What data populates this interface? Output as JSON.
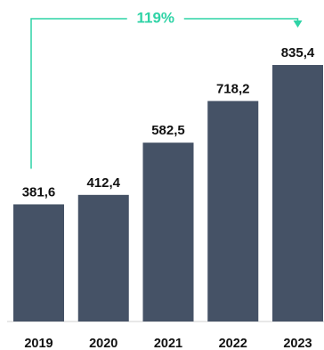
{
  "chart_data": {
    "type": "bar",
    "categories": [
      "2019",
      "2020",
      "2021",
      "2022",
      "2023"
    ],
    "values": [
      381.6,
      412.4,
      582.5,
      718.2,
      835.4
    ],
    "value_labels": [
      "381,6",
      "412,4",
      "582,5",
      "718,2",
      "835,4"
    ],
    "ylim": [
      0,
      835.4
    ],
    "grid": false,
    "annotations": [
      {
        "text": "119%",
        "from": "2019",
        "to": "2023"
      }
    ]
  },
  "colors": {
    "bar": "#455266",
    "annotation": "#2fd3a6",
    "axis": "#d0d0d0"
  }
}
